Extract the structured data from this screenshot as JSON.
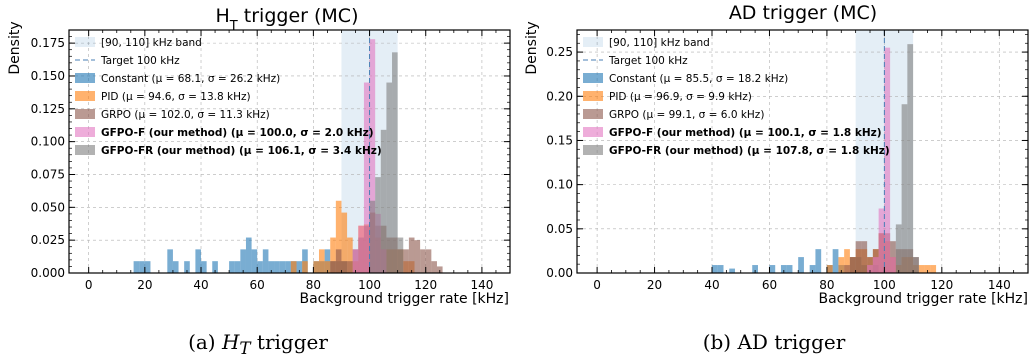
{
  "captions": [
    {
      "prefix": "(a) ",
      "math": "H",
      "math_sub": "T",
      "suffix": " trigger"
    },
    {
      "prefix": "(b) AD trigger",
      "math": "",
      "math_sub": "",
      "suffix": ""
    }
  ],
  "chart_data": [
    {
      "type": "histogram",
      "title": "H",
      "title_sub": "T",
      "title_rest": " trigger (MC)",
      "xlabel": "Background trigger rate [kHz]",
      "ylabel": "Density",
      "xlim": [
        -7,
        150
      ],
      "ylim": [
        0,
        0.185
      ],
      "xticks": [
        0,
        20,
        40,
        60,
        80,
        100,
        120,
        140
      ],
      "yticks": [
        0.0,
        0.025,
        0.05,
        0.075,
        0.1,
        0.125,
        0.15,
        0.175
      ],
      "ytick_labels": [
        "0.000",
        "0.025",
        "0.050",
        "0.075",
        "0.100",
        "0.125",
        "0.150",
        "0.175"
      ],
      "band": [
        90,
        110
      ],
      "target": 100,
      "bin_width": 2,
      "legend": [
        {
          "label": "[90, 110] kHz band",
          "bold": false
        },
        {
          "label": "Target 100 kHz",
          "bold": false
        },
        {
          "label": "Constant  (μ = 68.1, σ = 26.2 kHz)",
          "bold": false
        },
        {
          "label": "PID  (μ = 94.6, σ = 13.8 kHz)",
          "bold": false
        },
        {
          "label": "GRPO  (μ = 102.0, σ = 11.3 kHz)",
          "bold": false
        },
        {
          "label": "GFPO-F (our method)  (μ = 100.0, σ = 2.0 kHz)",
          "bold": true
        },
        {
          "label": "GFPO-FR (our method)  (μ = 106.1, σ = 3.4 kHz)",
          "bold": true
        }
      ],
      "series": [
        {
          "name": "Constant",
          "color": "#1f77b4",
          "bins": [
            [
              16,
              0.009
            ],
            [
              18,
              0.009
            ],
            [
              20,
              0.009
            ],
            [
              28,
              0.018
            ],
            [
              30,
              0.009
            ],
            [
              34,
              0.009
            ],
            [
              38,
              0.018
            ],
            [
              40,
              0.009
            ],
            [
              44,
              0.009
            ],
            [
              50,
              0.009
            ],
            [
              52,
              0.009
            ],
            [
              54,
              0.018
            ],
            [
              56,
              0.027
            ],
            [
              58,
              0.018
            ],
            [
              60,
              0.009
            ],
            [
              62,
              0.018
            ],
            [
              64,
              0.009
            ],
            [
              66,
              0.009
            ],
            [
              68,
              0.009
            ],
            [
              70,
              0.009
            ],
            [
              72,
              0.009
            ],
            [
              74,
              0.009
            ],
            [
              76,
              0.018
            ],
            [
              80,
              0.009
            ],
            [
              82,
              0.009
            ],
            [
              84,
              0.018
            ],
            [
              86,
              0.009
            ],
            [
              88,
              0.009
            ],
            [
              90,
              0.009
            ]
          ]
        },
        {
          "name": "PID",
          "color": "#ff7f0e",
          "bins": [
            [
              72,
              0.009
            ],
            [
              76,
              0.009
            ],
            [
              80,
              0.009
            ],
            [
              82,
              0.018
            ],
            [
              84,
              0.009
            ],
            [
              86,
              0.027
            ],
            [
              88,
              0.055
            ],
            [
              90,
              0.046
            ],
            [
              92,
              0.027
            ],
            [
              94,
              0.009
            ],
            [
              96,
              0.036
            ],
            [
              98,
              0.037
            ],
            [
              100,
              0.046
            ],
            [
              102,
              0.027
            ],
            [
              104,
              0.018
            ],
            [
              106,
              0.018
            ],
            [
              108,
              0.018
            ],
            [
              110,
              0.018
            ],
            [
              112,
              0.009
            ],
            [
              114,
              0.009
            ]
          ]
        },
        {
          "name": "GRPO",
          "color": "#8c564b",
          "bins": [
            [
              86,
              0.009
            ],
            [
              88,
              0.018
            ],
            [
              90,
              0.009
            ],
            [
              92,
              0.009
            ],
            [
              94,
              0.018
            ],
            [
              96,
              0.027
            ],
            [
              98,
              0.036
            ],
            [
              100,
              0.046
            ],
            [
              102,
              0.036
            ],
            [
              104,
              0.036
            ],
            [
              106,
              0.027
            ],
            [
              108,
              0.027
            ],
            [
              110,
              0.018
            ],
            [
              112,
              0.018
            ],
            [
              114,
              0.027
            ],
            [
              116,
              0.025
            ],
            [
              118,
              0.018
            ],
            [
              120,
              0.018
            ],
            [
              122,
              0.009
            ],
            [
              124,
              0.005
            ]
          ]
        },
        {
          "name": "GFPO-F (our method)",
          "color": "#e377c2",
          "bins": [
            [
              94,
              0.018
            ],
            [
              96,
              0.036
            ],
            [
              98,
              0.145
            ],
            [
              100,
              0.178
            ],
            [
              102,
              0.045
            ],
            [
              104,
              0.018
            ]
          ]
        },
        {
          "name": "GFPO-FR (our method)",
          "color": "#7f7f7f",
          "bins": [
            [
              100,
              0.055
            ],
            [
              102,
              0.073
            ],
            [
              104,
              0.109
            ],
            [
              106,
              0.145
            ],
            [
              108,
              0.168
            ],
            [
              110,
              0.027
            ]
          ]
        }
      ]
    },
    {
      "type": "histogram",
      "title": "AD trigger (MC)",
      "title_sub": "",
      "title_rest": "",
      "xlabel": "Background trigger rate [kHz]",
      "ylabel": "Density",
      "xlim": [
        -7,
        150
      ],
      "ylim": [
        0,
        0.275
      ],
      "xticks": [
        0,
        20,
        40,
        60,
        80,
        100,
        120,
        140
      ],
      "yticks": [
        0.0,
        0.05,
        0.1,
        0.15,
        0.2,
        0.25
      ],
      "ytick_labels": [
        "0.00",
        "0.05",
        "0.10",
        "0.15",
        "0.20",
        "0.25"
      ],
      "band": [
        90,
        110
      ],
      "target": 100,
      "bin_width": 2,
      "legend": [
        {
          "label": "[90, 110] kHz band",
          "bold": false
        },
        {
          "label": "Target 100 kHz",
          "bold": false
        },
        {
          "label": "Constant  (μ = 85.5, σ = 18.2 kHz)",
          "bold": false
        },
        {
          "label": "PID  (μ = 96.9, σ = 9.9 kHz)",
          "bold": false
        },
        {
          "label": "GRPO  (μ = 99.1, σ = 6.0 kHz)",
          "bold": false
        },
        {
          "label": "GFPO-F (our method)  (μ = 100.1, σ = 1.8 kHz)",
          "bold": true
        },
        {
          "label": "GFPO-FR (our method)  (μ = 107.8, σ = 1.8 kHz)",
          "bold": true
        }
      ],
      "series": [
        {
          "name": "Constant",
          "color": "#1f77b4",
          "bins": [
            [
              40,
              0.009
            ],
            [
              42,
              0.009
            ],
            [
              46,
              0.005
            ],
            [
              54,
              0.009
            ],
            [
              60,
              0.009
            ],
            [
              64,
              0.009
            ],
            [
              66,
              0.009
            ],
            [
              70,
              0.018
            ],
            [
              74,
              0.009
            ],
            [
              76,
              0.027
            ],
            [
              80,
              0.009
            ],
            [
              82,
              0.027
            ],
            [
              84,
              0.009
            ],
            [
              88,
              0.018
            ],
            [
              90,
              0.018
            ],
            [
              92,
              0.009
            ],
            [
              96,
              0.009
            ]
          ]
        },
        {
          "name": "PID",
          "color": "#ff7f0e",
          "bins": [
            [
              80,
              0.009
            ],
            [
              84,
              0.018
            ],
            [
              86,
              0.027
            ],
            [
              88,
              0.018
            ],
            [
              90,
              0.027
            ],
            [
              92,
              0.027
            ],
            [
              94,
              0.018
            ],
            [
              96,
              0.027
            ],
            [
              98,
              0.045
            ],
            [
              100,
              0.036
            ],
            [
              102,
              0.018
            ],
            [
              104,
              0.009
            ],
            [
              106,
              0.018
            ],
            [
              108,
              0.018
            ],
            [
              110,
              0.009
            ],
            [
              112,
              0.009
            ],
            [
              114,
              0.009
            ],
            [
              116,
              0.009
            ]
          ]
        },
        {
          "name": "GRPO",
          "color": "#8c564b",
          "bins": [
            [
              86,
              0.009
            ],
            [
              88,
              0.018
            ],
            [
              90,
              0.036
            ],
            [
              92,
              0.036
            ],
            [
              94,
              0.018
            ],
            [
              96,
              0.027
            ],
            [
              98,
              0.045
            ],
            [
              100,
              0.045
            ],
            [
              102,
              0.036
            ],
            [
              104,
              0.027
            ],
            [
              106,
              0.027
            ],
            [
              108,
              0.027
            ],
            [
              110,
              0.018
            ]
          ]
        },
        {
          "name": "GFPO-F (our method)",
          "color": "#e377c2",
          "bins": [
            [
              94,
              0.009
            ],
            [
              96,
              0.018
            ],
            [
              98,
              0.073
            ],
            [
              100,
              0.255
            ],
            [
              102,
              0.018
            ]
          ]
        },
        {
          "name": "GFPO-FR (our method)",
          "color": "#7f7f7f",
          "bins": [
            [
              104,
              0.055
            ],
            [
              106,
              0.191
            ],
            [
              108,
              0.259
            ],
            [
              110,
              0.018
            ]
          ]
        }
      ]
    }
  ]
}
